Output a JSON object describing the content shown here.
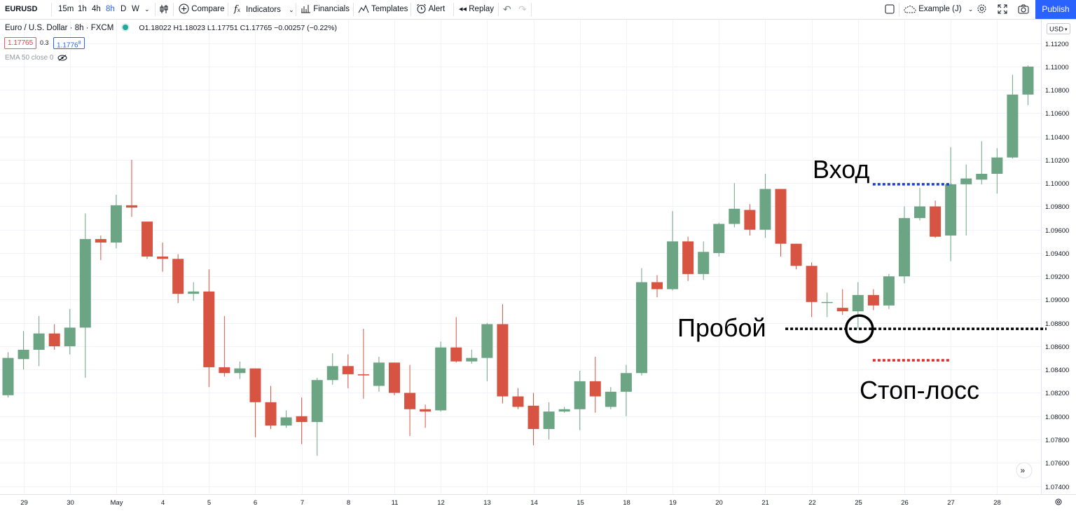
{
  "toolbar": {
    "symbol": "EURUSD",
    "intervals": [
      "15m",
      "1h",
      "4h",
      "8h",
      "D",
      "W"
    ],
    "active_interval": "8h",
    "compare": "Compare",
    "indicators": "Indicators",
    "financials": "Financials",
    "templates": "Templates",
    "alert": "Alert",
    "replay": "Replay",
    "layout_name": "Example (J)",
    "publish": "Publish"
  },
  "legend": {
    "title": "Euro / U.S. Dollar · 8h · FXCM",
    "ohlc": "O1.18022 H1.18023 L1.17751 C1.17765 −0.00257 (−0.22%)",
    "bid": "1.17765",
    "spread": "0.3",
    "ask_main": "1.1776",
    "ask_sup": "8",
    "indicator": "EMA 50 close 0"
  },
  "colors": {
    "up": "#6ba583",
    "down": "#d75442",
    "entry_line": "#1a3be0",
    "stop_line": "#e8262a",
    "breakout_line": "#000000",
    "accent": "#2962ff"
  },
  "axis": {
    "currency": "USD"
  },
  "chart_data": {
    "type": "candlestick",
    "symbol": "EURUSD",
    "timeframe": "8h",
    "ylim": [
      1.073,
      1.114
    ],
    "y_ticks": [
      1.074,
      1.076,
      1.078,
      1.08,
      1.082,
      1.084,
      1.086,
      1.088,
      1.09,
      1.092,
      1.094,
      1.096,
      1.098,
      1.1,
      1.102,
      1.104,
      1.106,
      1.108,
      1.11,
      1.112
    ],
    "x_labels": [
      {
        "label": "29",
        "index": 1
      },
      {
        "label": "30",
        "index": 4
      },
      {
        "label": "May",
        "index": 7
      },
      {
        "label": "4",
        "index": 10
      },
      {
        "label": "5",
        "index": 13
      },
      {
        "label": "6",
        "index": 16
      },
      {
        "label": "7",
        "index": 19
      },
      {
        "label": "8",
        "index": 22
      },
      {
        "label": "11",
        "index": 25
      },
      {
        "label": "12",
        "index": 28
      },
      {
        "label": "13",
        "index": 31
      },
      {
        "label": "14",
        "index": 34
      },
      {
        "label": "15",
        "index": 37
      },
      {
        "label": "18",
        "index": 40
      },
      {
        "label": "19",
        "index": 43
      },
      {
        "label": "20",
        "index": 46
      },
      {
        "label": "21",
        "index": 49
      },
      {
        "label": "22",
        "index": 52
      },
      {
        "label": "25",
        "index": 55
      },
      {
        "label": "26",
        "index": 58
      },
      {
        "label": "27",
        "index": 61
      },
      {
        "label": "28",
        "index": 64
      }
    ],
    "candles": [
      {
        "o": 1.0818,
        "h": 1.0855,
        "l": 1.0816,
        "c": 1.085
      },
      {
        "o": 1.0849,
        "h": 1.0873,
        "l": 1.084,
        "c": 1.0857
      },
      {
        "o": 1.0857,
        "h": 1.0886,
        "l": 1.0843,
        "c": 1.0871
      },
      {
        "o": 1.0871,
        "h": 1.0879,
        "l": 1.0857,
        "c": 1.086
      },
      {
        "o": 1.086,
        "h": 1.0892,
        "l": 1.0853,
        "c": 1.0876
      },
      {
        "o": 1.0876,
        "h": 1.0974,
        "l": 1.0833,
        "c": 1.0952
      },
      {
        "o": 1.0952,
        "h": 1.0955,
        "l": 1.0934,
        "c": 1.0949
      },
      {
        "o": 1.0949,
        "h": 1.099,
        "l": 1.0944,
        "c": 1.0981
      },
      {
        "o": 1.0981,
        "h": 1.102,
        "l": 1.0971,
        "c": 1.0979
      },
      {
        "o": 1.0967,
        "h": 1.0967,
        "l": 1.0935,
        "c": 1.0937
      },
      {
        "o": 1.0937,
        "h": 1.0949,
        "l": 1.0924,
        "c": 1.0935
      },
      {
        "o": 1.0935,
        "h": 1.0939,
        "l": 1.0897,
        "c": 1.0905
      },
      {
        "o": 1.0905,
        "h": 1.0915,
        "l": 1.0899,
        "c": 1.0907
      },
      {
        "o": 1.0907,
        "h": 1.0926,
        "l": 1.0825,
        "c": 1.0842
      },
      {
        "o": 1.0842,
        "h": 1.0886,
        "l": 1.0834,
        "c": 1.0837
      },
      {
        "o": 1.0837,
        "h": 1.0847,
        "l": 1.0832,
        "c": 1.0841
      },
      {
        "o": 1.0841,
        "h": 1.0841,
        "l": 1.0782,
        "c": 1.0812
      },
      {
        "o": 1.0812,
        "h": 1.0826,
        "l": 1.0789,
        "c": 1.0792
      },
      {
        "o": 1.0792,
        "h": 1.0805,
        "l": 1.079,
        "c": 1.0799
      },
      {
        "o": 1.08,
        "h": 1.0816,
        "l": 1.0776,
        "c": 1.0795
      },
      {
        "o": 1.0795,
        "h": 1.0833,
        "l": 1.0766,
        "c": 1.0831
      },
      {
        "o": 1.0831,
        "h": 1.0854,
        "l": 1.0827,
        "c": 1.0843
      },
      {
        "o": 1.0843,
        "h": 1.0853,
        "l": 1.0824,
        "c": 1.0836
      },
      {
        "o": 1.0836,
        "h": 1.0875,
        "l": 1.0815,
        "c": 1.0835
      },
      {
        "o": 1.0826,
        "h": 1.0851,
        "l": 1.0821,
        "c": 1.0846
      },
      {
        "o": 1.0846,
        "h": 1.0846,
        "l": 1.0818,
        "c": 1.082
      },
      {
        "o": 1.082,
        "h": 1.0844,
        "l": 1.0783,
        "c": 1.0806
      },
      {
        "o": 1.0806,
        "h": 1.081,
        "l": 1.079,
        "c": 1.0804
      },
      {
        "o": 1.0805,
        "h": 1.0864,
        "l": 1.0804,
        "c": 1.0859
      },
      {
        "o": 1.0859,
        "h": 1.0885,
        "l": 1.0846,
        "c": 1.0847
      },
      {
        "o": 1.0847,
        "h": 1.0857,
        "l": 1.0845,
        "c": 1.085
      },
      {
        "o": 1.085,
        "h": 1.088,
        "l": 1.083,
        "c": 1.0879
      },
      {
        "o": 1.0879,
        "h": 1.0896,
        "l": 1.0811,
        "c": 1.0817
      },
      {
        "o": 1.0817,
        "h": 1.0824,
        "l": 1.0806,
        "c": 1.0808
      },
      {
        "o": 1.0809,
        "h": 1.082,
        "l": 1.0775,
        "c": 1.0789
      },
      {
        "o": 1.0789,
        "h": 1.0812,
        "l": 1.078,
        "c": 1.0804
      },
      {
        "o": 1.0804,
        "h": 1.0808,
        "l": 1.0803,
        "c": 1.0806
      },
      {
        "o": 1.0806,
        "h": 1.0839,
        "l": 1.0788,
        "c": 1.083
      },
      {
        "o": 1.083,
        "h": 1.0851,
        "l": 1.0803,
        "c": 1.0817
      },
      {
        "o": 1.0808,
        "h": 1.0825,
        "l": 1.0806,
        "c": 1.0821
      },
      {
        "o": 1.0821,
        "h": 1.0844,
        "l": 1.08,
        "c": 1.0837
      },
      {
        "o": 1.0837,
        "h": 1.0927,
        "l": 1.0835,
        "c": 1.0915
      },
      {
        "o": 1.0915,
        "h": 1.0921,
        "l": 1.0902,
        "c": 1.0909
      },
      {
        "o": 1.0909,
        "h": 1.0976,
        "l": 1.0908,
        "c": 1.095
      },
      {
        "o": 1.095,
        "h": 1.0954,
        "l": 1.0916,
        "c": 1.0922
      },
      {
        "o": 1.0922,
        "h": 1.095,
        "l": 1.0917,
        "c": 1.0941
      },
      {
        "o": 1.094,
        "h": 1.0966,
        "l": 1.0937,
        "c": 1.0965
      },
      {
        "o": 1.0965,
        "h": 1.1,
        "l": 1.0962,
        "c": 1.0978
      },
      {
        "o": 1.0977,
        "h": 1.0982,
        "l": 1.0955,
        "c": 1.096
      },
      {
        "o": 1.096,
        "h": 1.1008,
        "l": 1.0953,
        "c": 1.0995
      },
      {
        "o": 1.0995,
        "h": 1.0995,
        "l": 1.0937,
        "c": 1.0948
      },
      {
        "o": 1.0948,
        "h": 1.0948,
        "l": 1.0926,
        "c": 1.0929
      },
      {
        "o": 1.0929,
        "h": 1.0932,
        "l": 1.0885,
        "c": 1.0898
      },
      {
        "o": 1.0898,
        "h": 1.0906,
        "l": 1.0885,
        "c": 1.0898
      },
      {
        "o": 1.0893,
        "h": 1.0909,
        "l": 1.0887,
        "c": 1.089
      },
      {
        "o": 1.089,
        "h": 1.0915,
        "l": 1.0875,
        "c": 1.0904
      },
      {
        "o": 1.0904,
        "h": 1.0909,
        "l": 1.0891,
        "c": 1.0895
      },
      {
        "o": 1.0895,
        "h": 1.0922,
        "l": 1.0892,
        "c": 1.092
      },
      {
        "o": 1.092,
        "h": 1.098,
        "l": 1.0914,
        "c": 1.097
      },
      {
        "o": 1.097,
        "h": 1.0996,
        "l": 1.0968,
        "c": 1.098
      },
      {
        "o": 1.098,
        "h": 1.0985,
        "l": 1.0953,
        "c": 1.0954
      },
      {
        "o": 1.0955,
        "h": 1.1031,
        "l": 1.0933,
        "c": 1.0999
      },
      {
        "o": 1.0999,
        "h": 1.1016,
        "l": 1.0955,
        "c": 1.1004
      },
      {
        "o": 1.1003,
        "h": 1.1036,
        "l": 1.0999,
        "c": 1.1008
      },
      {
        "o": 1.1008,
        "h": 1.103,
        "l": 1.0991,
        "c": 1.1022
      },
      {
        "o": 1.1022,
        "h": 1.1093,
        "l": 1.1021,
        "c": 1.1076
      },
      {
        "o": 1.1076,
        "h": 1.1101,
        "l": 1.1067,
        "c": 1.11
      }
    ],
    "annotations": {
      "entry": {
        "label": "Вход",
        "price": 1.0999,
        "from_index": 56,
        "to_index": 61
      },
      "breakout": {
        "label": "Пробой",
        "price": 1.0875,
        "from_index": 50.3,
        "to_index": 67.2,
        "circle_index": 55
      },
      "stop_loss": {
        "label": "Стоп-лосс",
        "price": 1.0848,
        "from_index": 56,
        "to_index": 61
      }
    }
  }
}
